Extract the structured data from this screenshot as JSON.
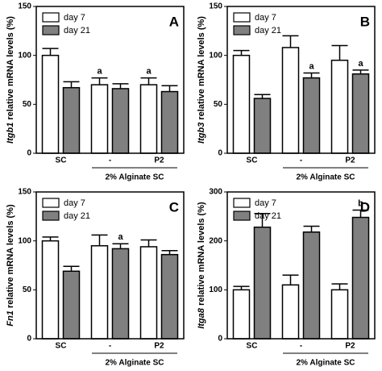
{
  "chart_data": [
    {
      "type": "bar",
      "panel": "A",
      "ylabel_italic": "Itgb1",
      "ylabel": "relative mRNA levels (%)",
      "group_label": "2% Alginate SC",
      "categories": [
        "SC",
        "-",
        "P2"
      ],
      "ylim": [
        0,
        150
      ],
      "yticks": [
        0,
        50,
        100,
        150
      ],
      "legend": "top-left",
      "series": [
        {
          "name": "day 7",
          "color": "#ffffff",
          "values": [
            100,
            70,
            70
          ],
          "errors": [
            7,
            7,
            7
          ],
          "letters": [
            null,
            "a",
            "a"
          ]
        },
        {
          "name": "day 21",
          "color": "#808080",
          "values": [
            67,
            66,
            63
          ],
          "errors": [
            6,
            5,
            6
          ],
          "letters": [
            null,
            null,
            null
          ]
        }
      ]
    },
    {
      "type": "bar",
      "panel": "B",
      "ylabel_italic": "Itgb3",
      "ylabel": "relative mRNA levels (%)",
      "group_label": "2% Alginate SC",
      "categories": [
        "SC",
        "-",
        "P2"
      ],
      "ylim": [
        0,
        150
      ],
      "yticks": [
        0,
        50,
        100,
        150
      ],
      "legend": "top-left",
      "series": [
        {
          "name": "day 7",
          "color": "#ffffff",
          "values": [
            100,
            108,
            95
          ],
          "errors": [
            5,
            12,
            15
          ],
          "letters": [
            null,
            null,
            null
          ]
        },
        {
          "name": "day 21",
          "color": "#808080",
          "values": [
            56,
            77,
            81
          ],
          "errors": [
            4,
            5,
            4
          ],
          "letters": [
            null,
            "a",
            "a"
          ]
        }
      ]
    },
    {
      "type": "bar",
      "panel": "C",
      "ylabel_italic": "Fn1",
      "ylabel": "relative mRNA levels (%)",
      "group_label": "2% Alginate SC",
      "categories": [
        "SC",
        "-",
        "P2"
      ],
      "ylim": [
        0,
        150
      ],
      "yticks": [
        0,
        50,
        100,
        150
      ],
      "legend": "top-left",
      "series": [
        {
          "name": "day 7",
          "color": "#ffffff",
          "values": [
            100,
            95,
            94
          ],
          "errors": [
            4,
            11,
            7
          ],
          "letters": [
            null,
            null,
            null
          ]
        },
        {
          "name": "day 21",
          "color": "#808080",
          "values": [
            69,
            92,
            86
          ],
          "errors": [
            5,
            5,
            4
          ],
          "letters": [
            null,
            "a",
            null
          ]
        }
      ]
    },
    {
      "type": "bar",
      "panel": "D",
      "ylabel_italic": "Itga8",
      "ylabel": "relative mRNA levels (%)",
      "group_label": "2% Alginate SC",
      "categories": [
        "SC",
        "-",
        "P2"
      ],
      "ylim": [
        0,
        300
      ],
      "yticks": [
        0,
        100,
        200,
        300
      ],
      "legend": "top-left",
      "series": [
        {
          "name": "day 7",
          "color": "#ffffff",
          "values": [
            100,
            110,
            100
          ],
          "errors": [
            7,
            20,
            12
          ],
          "letters": [
            null,
            null,
            null
          ]
        },
        {
          "name": "day 21",
          "color": "#808080",
          "values": [
            228,
            218,
            248
          ],
          "errors": [
            28,
            12,
            15
          ],
          "letters": [
            null,
            null,
            "b"
          ]
        }
      ]
    }
  ]
}
